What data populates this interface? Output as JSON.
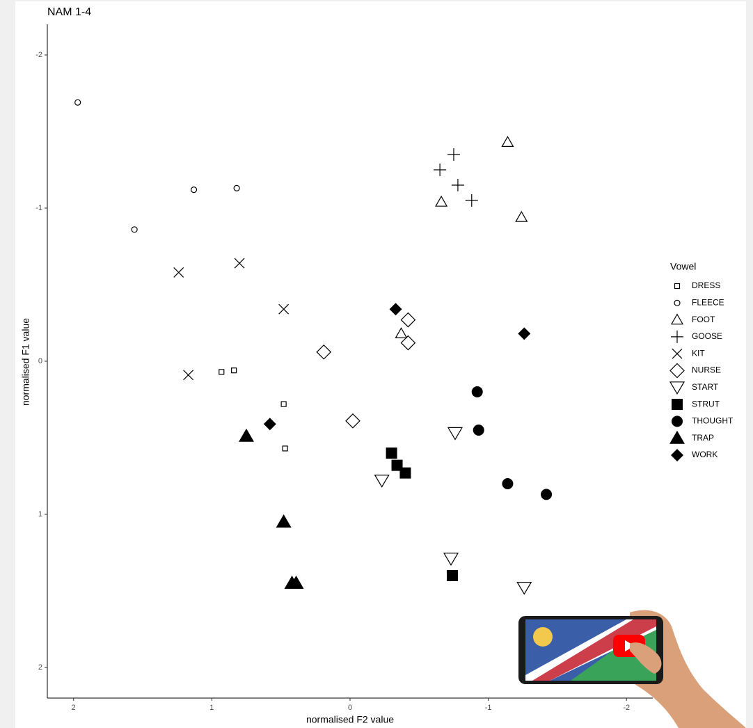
{
  "chart_data": {
    "type": "scatter",
    "title": "NAM 1-4",
    "x_label": "normalised F2 value",
    "y_label": "normalised F1 value",
    "legend_title": "Vowel",
    "legend": "right",
    "xlim": [
      2.19,
      -2.19
    ],
    "ylim": [
      -2.2,
      2.2
    ],
    "xticks": [
      2,
      1,
      0,
      -1,
      -2
    ],
    "yticks": [
      -2,
      -1,
      0,
      1,
      2
    ],
    "series": [
      {
        "name": "DRESS",
        "shape": "open-square",
        "color": "#000000",
        "x": [
          0.93,
          0.84,
          0.48,
          0.47
        ],
        "y": [
          0.07,
          0.06,
          0.28,
          0.57
        ]
      },
      {
        "name": "FLEECE",
        "shape": "open-circle",
        "color": "#000000",
        "x": [
          1.97,
          1.13,
          0.82,
          1.56
        ],
        "y": [
          -1.69,
          -1.12,
          -1.13,
          -0.86
        ]
      },
      {
        "name": "FOOT",
        "shape": "open-triangle",
        "color": "#000000",
        "x": [
          -1.14,
          -0.66,
          -1.24,
          -0.37
        ],
        "y": [
          -1.43,
          -1.04,
          -0.94,
          -0.18
        ]
      },
      {
        "name": "GOOSE",
        "shape": "plus",
        "color": "#000000",
        "x": [
          -0.75,
          -0.65,
          -0.78,
          -0.88
        ],
        "y": [
          -1.35,
          -1.25,
          -1.15,
          -1.05
        ]
      },
      {
        "name": "KIT",
        "shape": "cross",
        "color": "#000000",
        "x": [
          1.24,
          0.8,
          0.48,
          1.17
        ],
        "y": [
          -0.58,
          -0.64,
          -0.34,
          0.09
        ]
      },
      {
        "name": "NURSE",
        "shape": "open-diamond",
        "color": "#000000",
        "x": [
          -0.42,
          -0.42,
          0.19,
          -0.02
        ],
        "y": [
          -0.27,
          -0.12,
          -0.06,
          0.39
        ]
      },
      {
        "name": "START",
        "shape": "open-triangle-down",
        "color": "#000000",
        "x": [
          -0.76,
          -0.23,
          -0.73,
          -1.26
        ],
        "y": [
          0.47,
          0.78,
          1.29,
          1.48
        ]
      },
      {
        "name": "STRUT",
        "shape": "square",
        "color": "#000000",
        "x": [
          -0.3,
          -0.34,
          -0.4,
          -0.74
        ],
        "y": [
          0.6,
          0.68,
          0.73,
          1.4
        ]
      },
      {
        "name": "THOUGHT",
        "shape": "circle",
        "color": "#000000",
        "x": [
          -0.92,
          -0.93,
          -1.14,
          -1.42
        ],
        "y": [
          0.2,
          0.45,
          0.8,
          0.87
        ]
      },
      {
        "name": "TRAP",
        "shape": "triangle",
        "color": "#000000",
        "x": [
          0.75,
          0.48,
          0.42,
          0.39
        ],
        "y": [
          0.49,
          1.05,
          1.45,
          1.45
        ]
      },
      {
        "name": "WORK",
        "shape": "diamond",
        "color": "#000000",
        "x": [
          -0.33,
          -1.26,
          0.58
        ],
        "y": [
          -0.34,
          -0.18,
          0.41
        ]
      }
    ]
  }
}
